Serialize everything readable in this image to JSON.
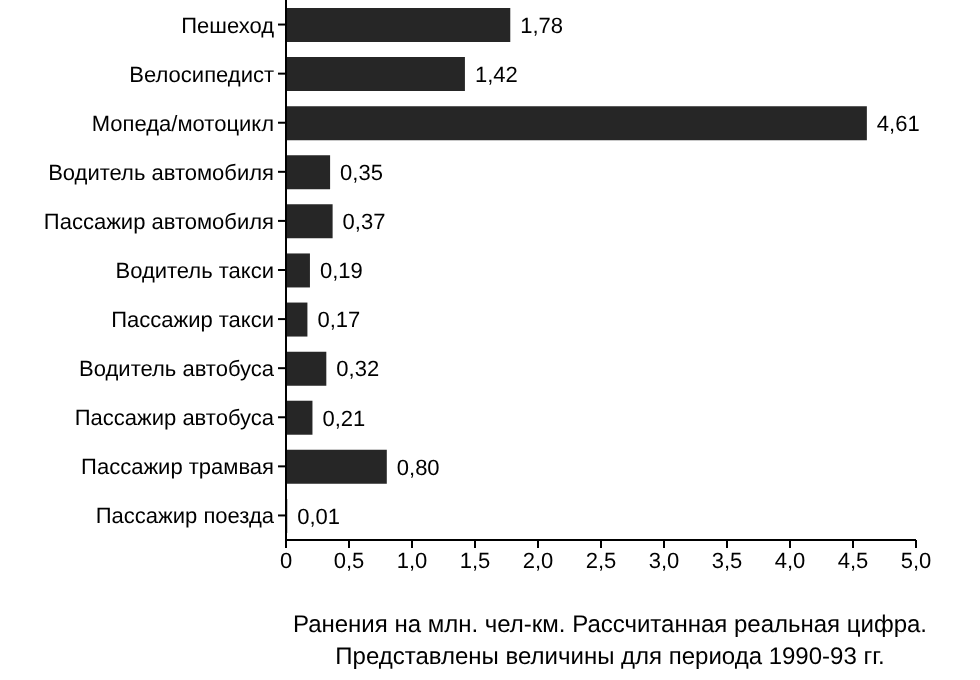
{
  "chart_data": {
    "type": "bar",
    "orientation": "horizontal",
    "xlabel": "Ранения на млн. чел-км. Рассчитанная реальная цифра.\nПредставлены величины для периода 1990-93 гг.",
    "categories": [
      "Пешеход",
      "Велосипедист",
      "Мопеда/мотоцикл",
      "Водитель автомобиля",
      "Пассажир автомобиля",
      "Водитель такси",
      "Пассажир такси",
      "Водитель автобуса",
      "Пассажир автобуса",
      "Пассажир трамвая",
      "Пассажир поезда"
    ],
    "values": [
      1.78,
      1.42,
      4.61,
      0.35,
      0.37,
      0.19,
      0.17,
      0.32,
      0.21,
      0.8,
      0.01
    ],
    "value_labels": [
      "1,78",
      "1,42",
      "4,61",
      "0,35",
      "0,37",
      "0,19",
      "0,17",
      "0,32",
      "0,21",
      "0,80",
      "0,01"
    ],
    "color": "#262626",
    "xlim": [
      0,
      5
    ],
    "xticks": [
      0,
      {
        "value": 0.5,
        "label": "0,5"
      },
      {
        "value": 1,
        "label": "1,0"
      },
      {
        "value": 1.5,
        "label": "1,5"
      },
      {
        "value": 2,
        "label": "2,0"
      },
      {
        "value": 2.5,
        "label": "2,5"
      },
      {
        "value": 3,
        "label": "3,0"
      },
      {
        "value": 3.5,
        "label": "3,5"
      },
      {
        "value": 4,
        "label": "4,0"
      },
      {
        "value": 4.5,
        "label": "4,5"
      },
      {
        "value": 5,
        "label": "5,0"
      }
    ],
    "grid": false
  }
}
